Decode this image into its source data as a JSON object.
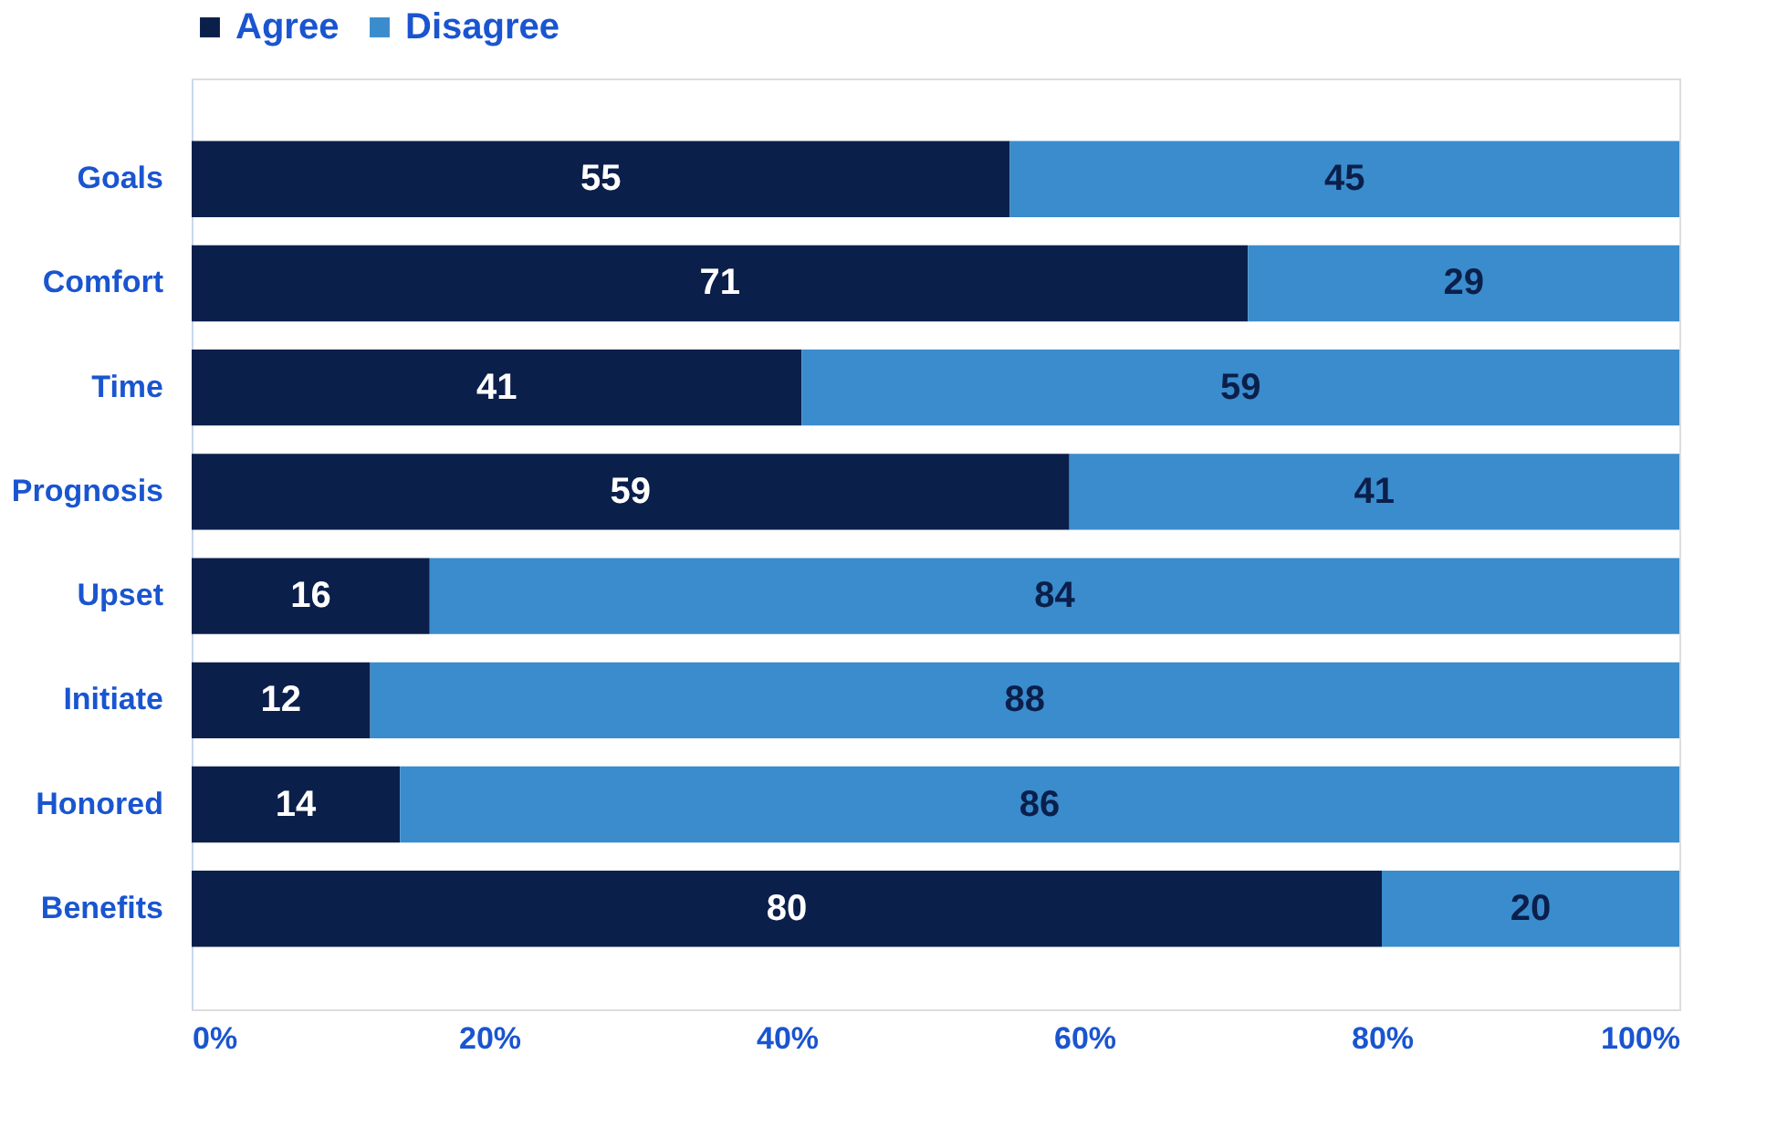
{
  "chart_data": {
    "type": "bar",
    "orientation": "horizontal",
    "stacked": true,
    "categories": [
      "Goals",
      "Comfort",
      "Time",
      "Prognosis",
      "Upset",
      "Initiate",
      "Honored",
      "Benefits"
    ],
    "series": [
      {
        "name": "Agree",
        "color": "#0b1f4b",
        "values": [
          55,
          71,
          41,
          59,
          16,
          12,
          14,
          80
        ]
      },
      {
        "name": "Disagree",
        "color": "#3a8ccd",
        "values": [
          45,
          29,
          59,
          41,
          84,
          88,
          86,
          20
        ]
      }
    ],
    "xlim": [
      0,
      100
    ],
    "xticks": [
      {
        "value": 0,
        "label": "0%"
      },
      {
        "value": 20,
        "label": "20%"
      },
      {
        "value": 40,
        "label": "40%"
      },
      {
        "value": 60,
        "label": "60%"
      },
      {
        "value": 80,
        "label": "80%"
      },
      {
        "value": 100,
        "label": "100%"
      }
    ],
    "data_labels": true,
    "grid": false,
    "legend": "top"
  }
}
